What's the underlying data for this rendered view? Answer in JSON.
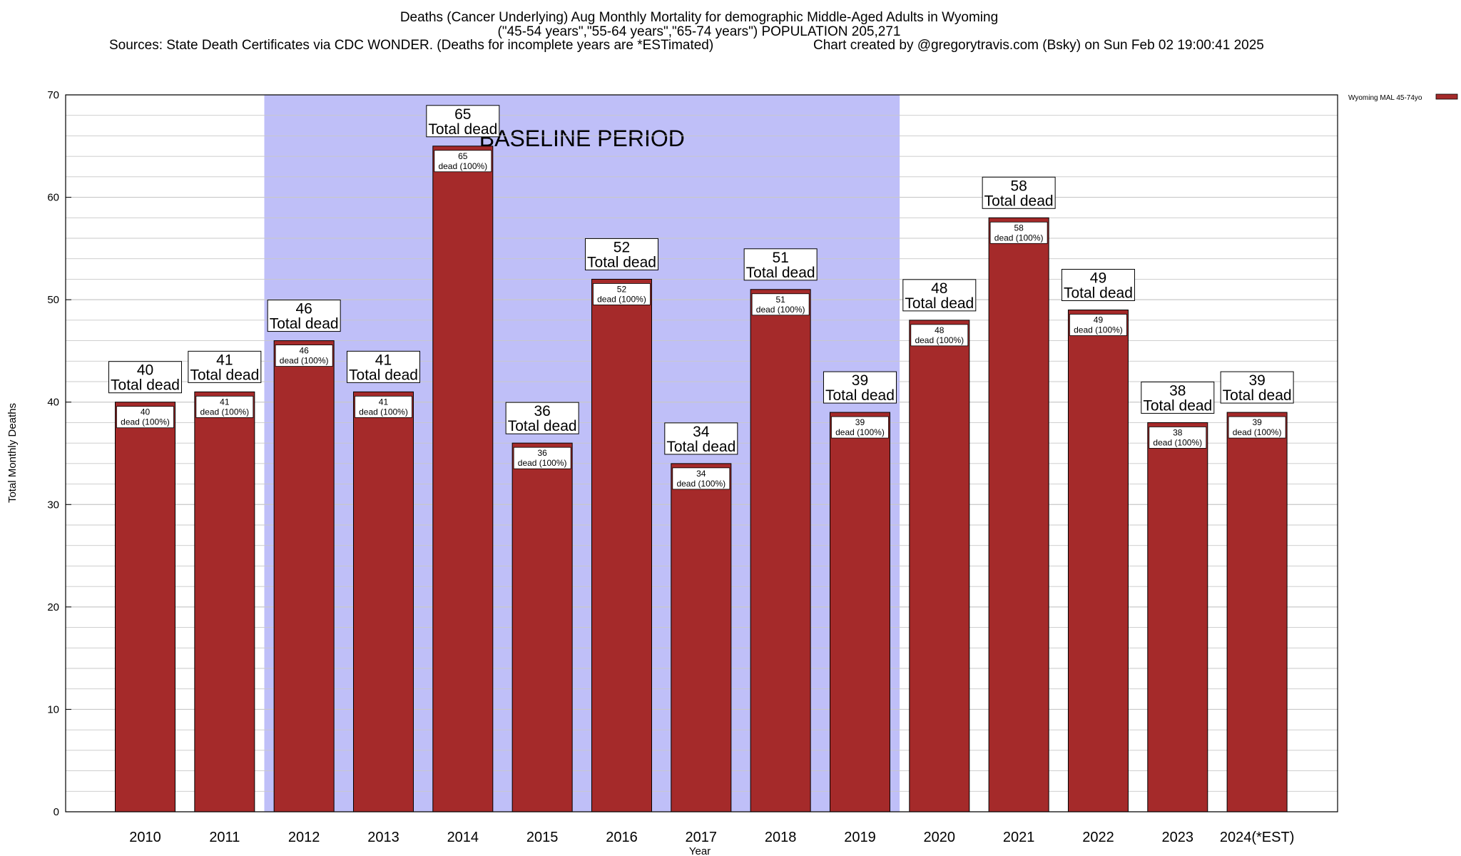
{
  "header": {
    "title_line1": "Deaths (Cancer Underlying) Aug Monthly Mortality for demographic Middle-Aged Adults in Wyoming",
    "title_line2": "(\"45-54 years\",\"55-64 years\",\"65-74 years\") POPULATION 205,271",
    "sources": "Sources: State Death Certificates via CDC WONDER. (Deaths for incomplete years are *ESTimated)",
    "credit": "Chart created by @gregorytravis.com (Bsky) on Sun Feb 02 19:00:41 2025"
  },
  "colors": {
    "bar": "#a52a2a",
    "baseline_band": "#bfbff8",
    "grid": "#c8c8c8"
  },
  "chart_data": {
    "type": "bar",
    "xlabel": "Year",
    "ylabel": "Total Monthly Deaths",
    "ylim": [
      0,
      70
    ],
    "yticks": [
      0,
      10,
      20,
      30,
      40,
      50,
      60,
      70
    ],
    "grid": true,
    "legend": {
      "placement": "top-right",
      "entries": [
        "Wyoming MAL 45-74yo"
      ]
    },
    "categories": [
      "2010",
      "2011",
      "2012",
      "2013",
      "2014",
      "2015",
      "2016",
      "2017",
      "2018",
      "2019",
      "2020",
      "2021",
      "2022",
      "2023",
      "2024(*EST)"
    ],
    "series": [
      {
        "name": "Wyoming MAL 45-74yo",
        "values": [
          40,
          41,
          46,
          41,
          65,
          36,
          52,
          34,
          51,
          39,
          48,
          58,
          49,
          38,
          39
        ]
      }
    ],
    "top_label_suffix": "Total dead",
    "inner_label_suffix": "dead (100%)",
    "baseline_band": {
      "label": "BASELINE PERIOD",
      "from": "2012",
      "to": "2019"
    }
  }
}
